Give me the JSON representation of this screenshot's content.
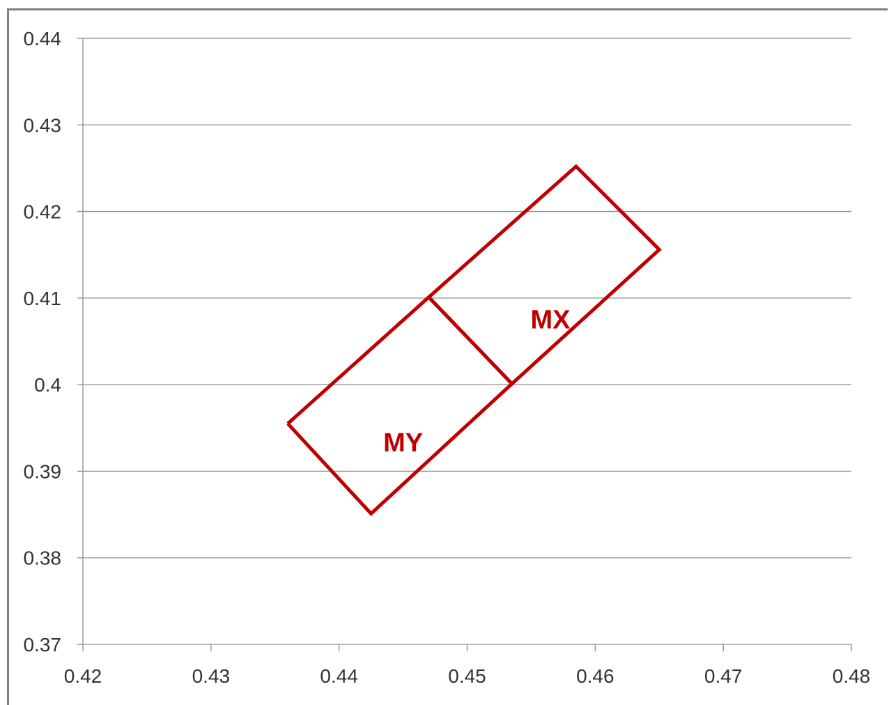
{
  "chart_data": {
    "type": "line",
    "title": "",
    "xlabel": "",
    "ylabel": "",
    "xlim": [
      0.42,
      0.48
    ],
    "ylim": [
      0.37,
      0.44
    ],
    "x_ticks": [
      0.42,
      0.43,
      0.44,
      0.45,
      0.46,
      0.47,
      0.48
    ],
    "x_tick_labels": [
      "0.42",
      "0.43",
      "0.44",
      "0.45",
      "0.46",
      "0.47",
      "0.48"
    ],
    "y_ticks": [
      0.37,
      0.38,
      0.39,
      0.4,
      0.41,
      0.42,
      0.43,
      0.44
    ],
    "y_tick_labels": [
      "0.37",
      "0.38",
      "0.39",
      "0.4",
      "0.41",
      "0.42",
      "0.43",
      "0.44"
    ],
    "grid": "horizontal",
    "series": [
      {
        "label": "MX",
        "label_at": [
          0.4565,
          0.4065
        ],
        "points": [
          [
            0.447,
            0.4101
          ],
          [
            0.4585,
            0.4252
          ],
          [
            0.465,
            0.4156
          ],
          [
            0.4535,
            0.4001
          ],
          [
            0.447,
            0.4101
          ]
        ]
      },
      {
        "label": "MY",
        "label_at": [
          0.445,
          0.3923
        ],
        "points": [
          [
            0.436,
            0.3955
          ],
          [
            0.4425,
            0.3851
          ],
          [
            0.4535,
            0.4001
          ],
          [
            0.447,
            0.4101
          ],
          [
            0.436,
            0.3955
          ]
        ]
      }
    ],
    "colors": {
      "series": "#c00000",
      "grid": "#8c8c8c",
      "axis": "#8c8c8c",
      "frame": "#7f7f7f"
    }
  }
}
